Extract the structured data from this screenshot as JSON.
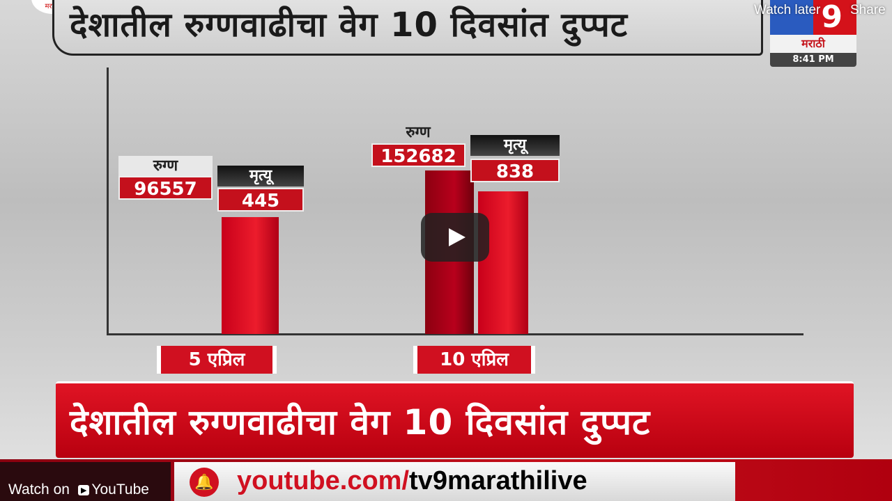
{
  "youtube": {
    "watch_later": "Watch later",
    "share": "Share",
    "watch_on": "Watch on",
    "youtube_label": "YouTube"
  },
  "channel": {
    "logo_number": "9",
    "logo_text": "मराठी",
    "time": "8:41 PM",
    "left_logo_text": "मराठी"
  },
  "headline": "देशातील रुग्णवाढीचा वेग 10 दिवसांत दुप्पट",
  "banner": "देशातील रुग्णवाढीचा वेग 10 दिवसांत दुप्पट",
  "footer": {
    "url_red": "youtube.com/",
    "url_black": "tv9marathilive"
  },
  "chart_data": {
    "type": "bar",
    "categories": [
      "5 एप्रिल",
      "10 एप्रिल"
    ],
    "series": [
      {
        "name": "रुग्ण",
        "values": [
          96557,
          152682
        ]
      },
      {
        "name": "मृत्यू",
        "values": [
          445,
          838
        ]
      }
    ],
    "colors": [
      "#a0001a",
      "#e01424"
    ]
  }
}
